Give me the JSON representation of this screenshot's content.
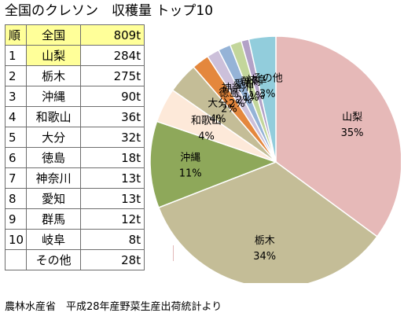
{
  "title": "全国のクレソン　収穫量 トップ10",
  "table": {
    "header": {
      "rank": "順",
      "prefecture": "全国",
      "value": "809t"
    },
    "rows": [
      {
        "rank": "1",
        "prefecture": "山梨",
        "value": "284t"
      },
      {
        "rank": "2",
        "prefecture": "栃木",
        "value": "275t"
      },
      {
        "rank": "3",
        "prefecture": "沖縄",
        "value": "90t"
      },
      {
        "rank": "4",
        "prefecture": "和歌山",
        "value": "36t"
      },
      {
        "rank": "5",
        "prefecture": "大分",
        "value": "32t"
      },
      {
        "rank": "6",
        "prefecture": "徳島",
        "value": "18t"
      },
      {
        "rank": "7",
        "prefecture": "神奈川",
        "value": "13t"
      },
      {
        "rank": "8",
        "prefecture": "愛知",
        "value": "13t"
      },
      {
        "rank": "9",
        "prefecture": "群馬",
        "value": "12t"
      },
      {
        "rank": "10",
        "prefecture": "岐阜",
        "value": "8t"
      },
      {
        "rank": "",
        "prefecture": "その他",
        "value": "28t"
      }
    ]
  },
  "source": "農林水産省　平成28年産野菜生産出荷統計より",
  "chart_data": {
    "type": "pie",
    "unit": "t",
    "total": 809,
    "slices": [
      {
        "label": "山梨",
        "value": 284,
        "percent": "35%",
        "color": "#e6b9b8"
      },
      {
        "label": "栃木",
        "value": 275,
        "percent": "34%",
        "color": "#c4bd97"
      },
      {
        "label": "沖縄",
        "value": 90,
        "percent": "11%",
        "color": "#8ea85a"
      },
      {
        "label": "和歌山",
        "value": 36,
        "percent": "4%",
        "color": "#fde9d9"
      },
      {
        "label": "大分",
        "value": 32,
        "percent": "4%",
        "color": "#c4bd97"
      },
      {
        "label": "徳島",
        "value": 18,
        "percent": "2%",
        "color": "#e4873d"
      },
      {
        "label": "神奈川",
        "value": 13,
        "percent": "2%",
        "color": "#ccc0da"
      },
      {
        "label": "愛知",
        "value": 13,
        "percent": "2%",
        "color": "#95b3d7"
      },
      {
        "label": "群馬",
        "value": 12,
        "percent": "1%",
        "color": "#c3d69b"
      },
      {
        "label": "岐阜",
        "value": 8,
        "percent": "1%",
        "color": "#b3a2c7"
      },
      {
        "label": "その他",
        "value": 28,
        "percent": "3%",
        "color": "#92cddc"
      }
    ]
  }
}
